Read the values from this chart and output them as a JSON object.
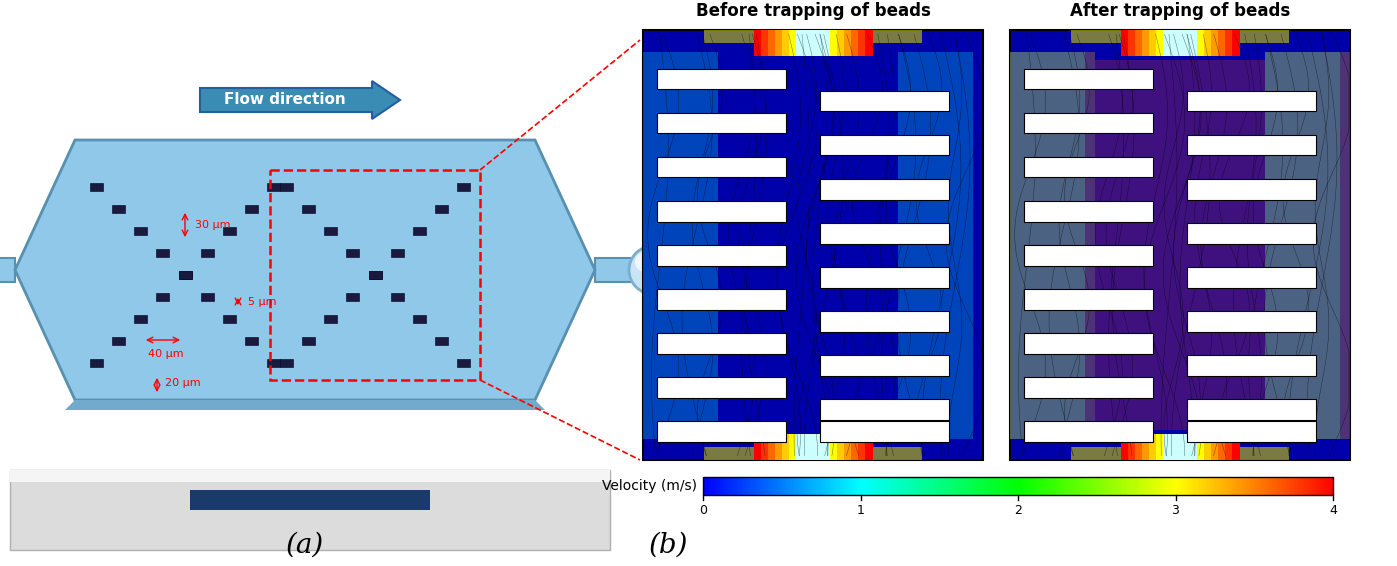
{
  "fig_width": 13.97,
  "fig_height": 5.66,
  "panel_a_label": "(a)",
  "panel_b_label": "(b)",
  "flow_direction_text": "Flow direction",
  "before_title": "Before trapping of beads",
  "after_title": "After trapping of beads",
  "colorbar_label": "Velocity (m/s)",
  "colorbar_ticks": [
    0,
    1,
    2,
    3,
    4
  ],
  "dim_labels": [
    "30 μm",
    "5 μm",
    "40 μm",
    "20 μm"
  ],
  "chip_facecolor": "#8BBFDC",
  "chip_edgecolor": "#6090A8",
  "pillar_facecolor": "#1a1a3e",
  "arrow_facecolor": "#3A7CA5",
  "arrow_edgecolor": "#2a6090",
  "red_color": "#FF0000",
  "white": "#FFFFFF",
  "black": "#000000",
  "base_light": "#E8E8E8",
  "base_stripe": "#1a3a6b",
  "title_fontsize": 12,
  "label_fontsize": 9,
  "cbar_fontsize": 9
}
